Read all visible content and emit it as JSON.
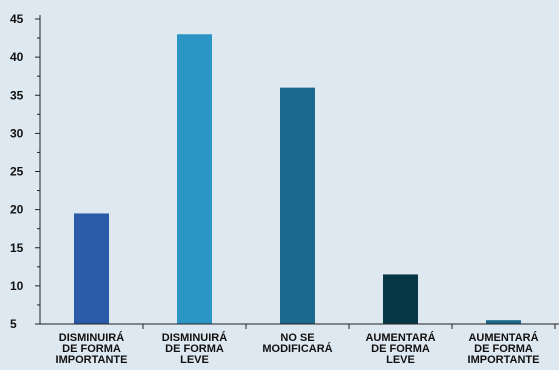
{
  "chart_data": {
    "type": "bar",
    "categories": [
      [
        "DISMINUIRÁ",
        "DE FORMA",
        "IMPORTANTE"
      ],
      [
        "DISMINUIRÁ",
        "DE FORMA",
        "LEVE"
      ],
      [
        "NO SE",
        "MODIFICARÁ"
      ],
      [
        "AUMENTARÁ",
        "DE FORMA",
        "LEVE"
      ],
      [
        "AUMENTARÁ",
        "DE FORMA",
        "IMPORTANTE"
      ]
    ],
    "values": [
      19.5,
      43,
      36,
      11.5,
      5.5
    ],
    "bar_colors": [
      "#2a5ba8",
      "#2b95c5",
      "#1b6a8e",
      "#063747",
      "#1b6a8e"
    ],
    "ylim": [
      5,
      45
    ],
    "yticks": [
      5,
      10,
      15,
      20,
      25,
      30,
      35,
      40,
      45
    ],
    "grid": false,
    "axis_color": "#222222",
    "title": "",
    "xlabel": "",
    "ylabel": ""
  }
}
